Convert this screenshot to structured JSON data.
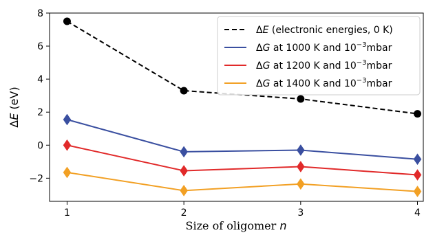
{
  "chart_data": {
    "type": "line",
    "xlabel": "Size of oligomer n",
    "ylabel": "ΔE (eV)",
    "x": [
      1,
      2,
      3,
      4
    ],
    "xlim": [
      0.85,
      4.05
    ],
    "ylim": [
      -3.4,
      8.0
    ],
    "xticks": [
      1,
      2,
      3,
      4
    ],
    "yticks": [
      -2,
      0,
      2,
      4,
      6,
      8
    ],
    "ytick_labels": [
      "−2",
      "0",
      "2",
      "4",
      "6",
      "8"
    ],
    "grid": false,
    "legend_position": "top-right",
    "series": [
      {
        "name": "ΔE (electronic energies, 0 K)",
        "legend": {
          "sym1": "Δ",
          "var": "E",
          "rest": " (electronic energies, 0 K)",
          "sup": ""
        },
        "values": [
          7.5,
          3.3,
          2.8,
          1.9
        ],
        "color": "#000000",
        "linestyle": "dashed",
        "marker": "circle"
      },
      {
        "name": "ΔG at 1000 K and 10−3mbar",
        "legend": {
          "sym1": "Δ",
          "var": "G",
          "rest": " at 1000 K and 10",
          "sup": "−3",
          "tail": "mbar"
        },
        "values": [
          1.55,
          -0.4,
          -0.3,
          -0.85
        ],
        "color": "#3a4fa0",
        "linestyle": "solid",
        "marker": "diamond"
      },
      {
        "name": "ΔG at 1200 K and 10−3mbar",
        "legend": {
          "sym1": "Δ",
          "var": "G",
          "rest": " at 1200 K and 10",
          "sup": "−3",
          "tail": "mbar"
        },
        "values": [
          0.0,
          -1.55,
          -1.3,
          -1.8
        ],
        "color": "#e12a2a",
        "linestyle": "solid",
        "marker": "diamond"
      },
      {
        "name": "ΔG at 1400 K and 10−3mbar",
        "legend": {
          "sym1": "Δ",
          "var": "G",
          "rest": " at 1400 K and 10",
          "sup": "−3",
          "tail": "mbar"
        },
        "values": [
          -1.65,
          -2.75,
          -2.35,
          -2.8
        ],
        "color": "#f2a024",
        "linestyle": "solid",
        "marker": "diamond"
      }
    ]
  }
}
